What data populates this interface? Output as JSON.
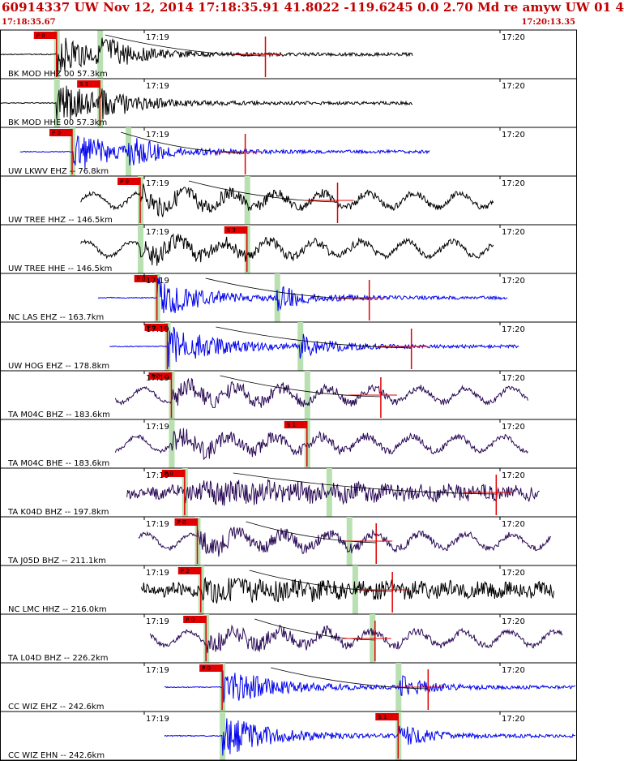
{
  "header": {
    "title": "60914337 UW Nov 12, 2014 17:18:35.91   41.8022 -119.6245  0.0 2.70 Md re amyw UW 01   4",
    "start_time": "17:18:35.67",
    "end_time": "17:20:13.35"
  },
  "colors": {
    "header_text": "#c00000",
    "pick": "#e00000",
    "phase_band": "#b8e0b0",
    "blue": "#0000ee",
    "purple": "#2a0a55",
    "black": "#000000"
  },
  "traces": [
    {
      "label": "BK MOD HHZ 00 57.3km",
      "tick1": "17:19",
      "tick2": "17:20",
      "pick": "P 0",
      "color": "black",
      "start": 0.0,
      "end": 0.715,
      "pa": 0.098,
      "sa": 0.173,
      "pick_at": 0.098,
      "ep": 0.46,
      "style": "quake"
    },
    {
      "label": "BK MOD HHE 00 57.3km",
      "tick1": "17:19",
      "tick2": "17:20",
      "pick": "S 1",
      "color": "black",
      "start": 0.0,
      "end": 0.715,
      "pa": 0.098,
      "sa": 0.173,
      "pick_at": 0.173,
      "ep": -1,
      "style": "quake"
    },
    {
      "label": "UW LKWV EHZ -- 76.8km",
      "tick1": "17:19",
      "tick2": "17:20",
      "pick": "P 0",
      "color": "blue",
      "start": 0.035,
      "end": 0.745,
      "pa": 0.125,
      "sa": 0.222,
      "pick_at": 0.125,
      "ep": 0.425,
      "style": "quake"
    },
    {
      "label": "UW TREE HHZ -- 146.5km",
      "tick1": "17:19",
      "tick2": "17:20",
      "pick": "P 0",
      "color": "black",
      "start": 0.14,
      "end": 0.855,
      "pa": 0.243,
      "sa": 0.428,
      "pick_at": 0.243,
      "ep": 0.585,
      "style": "wavy"
    },
    {
      "label": "UW TREE HHE -- 146.5km",
      "tick1": "17:19",
      "tick2": "17:20",
      "pick": "S 3",
      "color": "black",
      "start": 0.14,
      "end": 0.855,
      "pa": 0.243,
      "sa": 0.428,
      "pick_at": 0.428,
      "ep": -1,
      "style": "wavy"
    },
    {
      "label": "NC LAS EHZ -- 163.7km",
      "tick1": "17:19",
      "tick2": "17:20",
      "pick": "P 0",
      "color": "blue",
      "start": 0.17,
      "end": 0.88,
      "pa": 0.272,
      "sa": 0.48,
      "pick_at": 0.272,
      "ep": 0.64,
      "style": "quake"
    },
    {
      "label": "UW HOG EHZ -- 178.8km",
      "tick1": "17:19",
      "tick2": "17:20",
      "pick": "P 0",
      "color": "blue",
      "start": 0.19,
      "end": 0.9,
      "pa": 0.29,
      "sa": 0.52,
      "pick_at": 0.29,
      "ep": 0.713,
      "style": "quake"
    },
    {
      "label": "TA M04C BHZ -- 183.6km",
      "tick1": "17:19",
      "tick2": "17:20",
      "pick": "P 0",
      "color": "purple",
      "start": 0.2,
      "end": 0.915,
      "pa": 0.297,
      "sa": 0.532,
      "pick_at": 0.297,
      "ep": 0.66,
      "style": "wavy"
    },
    {
      "label": "TA M04C BHE -- 183.6km",
      "tick1": "17:19",
      "tick2": "17:20",
      "pick": "S 1",
      "color": "purple",
      "start": 0.2,
      "end": 0.915,
      "pa": 0.297,
      "sa": 0.532,
      "pick_at": 0.532,
      "ep": -1,
      "style": "wavy"
    },
    {
      "label": "TA K04D BHZ -- 197.8km",
      "tick1": "17:19",
      "tick2": "17:20",
      "pick": "P 0",
      "color": "purple",
      "start": 0.22,
      "end": 0.935,
      "pa": 0.32,
      "sa": 0.57,
      "pick_at": 0.32,
      "ep": 0.86,
      "style": "noisy"
    },
    {
      "label": "TA J05D BHZ -- 211.1km",
      "tick1": "17:19",
      "tick2": "17:20",
      "pick": "P 0",
      "color": "purple",
      "start": 0.24,
      "end": 0.955,
      "pa": 0.342,
      "sa": 0.605,
      "pick_at": 0.342,
      "ep": 0.652,
      "style": "wavy"
    },
    {
      "label": "NC LMC HHZ -- 216.0km",
      "tick1": "17:19",
      "tick2": "17:20",
      "pick": "P 2",
      "color": "black",
      "start": 0.245,
      "end": 0.96,
      "pa": 0.348,
      "sa": 0.615,
      "pick_at": 0.348,
      "ep": 0.68,
      "style": "noisy"
    },
    {
      "label": "TA L04D BHZ -- 226.2km",
      "tick1": "17:19",
      "tick2": "17:20",
      "pick": "P 0",
      "color": "purple",
      "start": 0.26,
      "end": 0.975,
      "pa": 0.357,
      "sa": 0.645,
      "pick_at": 0.357,
      "ep": 0.65,
      "style": "wavy"
    },
    {
      "label": "CC WIZ EHZ -- 242.6km",
      "tick1": "17:19",
      "tick2": "17:20",
      "pick": "P 0",
      "color": "blue",
      "start": 0.285,
      "end": 0.998,
      "pa": 0.385,
      "sa": 0.69,
      "pick_at": 0.385,
      "ep": 0.742,
      "style": "quake"
    },
    {
      "label": "CC WIZ EHN -- 242.6km",
      "tick1": "17:19",
      "tick2": "17:20",
      "pick": "S 1",
      "color": "blue",
      "start": 0.285,
      "end": 0.998,
      "pa": 0.385,
      "sa": 0.69,
      "pick_at": 0.69,
      "ep": -1,
      "style": "quake"
    }
  ]
}
